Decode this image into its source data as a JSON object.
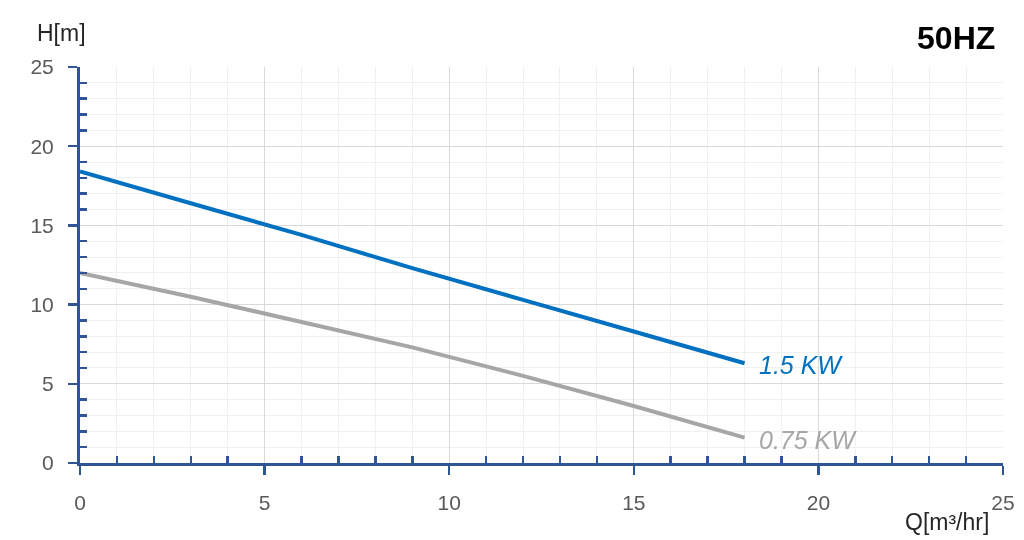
{
  "chart_data": {
    "type": "line",
    "title": "50HZ",
    "xlabel": "Q[m³/hr]",
    "ylabel": "H[m]",
    "x": [
      0,
      3,
      6,
      9,
      12,
      15,
      18
    ],
    "series": [
      {
        "name": "1.5 KW",
        "color": "#0070c0",
        "values": [
          18.4,
          16.4,
          14.4,
          12.3,
          10.3,
          8.3,
          6.3
        ]
      },
      {
        "name": "0.75 KW",
        "color": "#a6a6a6",
        "values": [
          12,
          10.5,
          8.9,
          7.3,
          5.5,
          3.6,
          1.6
        ]
      }
    ],
    "xlim": [
      0,
      25
    ],
    "ylim": [
      0,
      25
    ],
    "xticks": [
      0,
      {
        "value": 1,
        "label": null
      },
      {
        "value": 2,
        "label": null
      },
      {
        "value": 3,
        "label": null
      },
      {
        "value": 4,
        "label": null
      },
      5,
      {
        "value": 6,
        "label": null
      },
      {
        "value": 7,
        "label": null
      },
      {
        "value": 8,
        "label": null
      },
      {
        "value": 9,
        "label": null
      },
      10,
      {
        "value": 11,
        "label": null
      },
      {
        "value": 12,
        "label": null
      },
      {
        "value": 13,
        "label": null
      },
      {
        "value": 14,
        "label": null
      },
      15,
      {
        "value": 16,
        "label": null
      },
      {
        "value": 17,
        "label": null
      },
      {
        "value": 18,
        "label": null
      },
      {
        "value": 19,
        "label": null
      },
      20,
      {
        "value": 21,
        "label": null
      },
      {
        "value": 22,
        "label": null
      },
      {
        "value": 23,
        "label": null
      },
      {
        "value": 24,
        "label": null
      },
      25
    ],
    "yticks": [
      0,
      {
        "value": 1,
        "label": null
      },
      {
        "value": 2,
        "label": null
      },
      {
        "value": 3,
        "label": null
      },
      {
        "value": 4,
        "label": null
      },
      5,
      {
        "value": 6,
        "label": null
      },
      {
        "value": 7,
        "label": null
      },
      {
        "value": 8,
        "label": null
      },
      {
        "value": 9,
        "label": null
      },
      10,
      {
        "value": 11,
        "label": null
      },
      {
        "value": 12,
        "label": null
      },
      {
        "value": 13,
        "label": null
      },
      {
        "value": 14,
        "label": null
      },
      15,
      {
        "value": 16,
        "label": null
      },
      {
        "value": 17,
        "label": null
      },
      {
        "value": 18,
        "label": null
      },
      {
        "value": 19,
        "label": null
      },
      20,
      {
        "value": 21,
        "label": null
      },
      {
        "value": 22,
        "label": null
      },
      {
        "value": 23,
        "label": null
      },
      {
        "value": 24,
        "label": null
      },
      25
    ],
    "grid": true
  }
}
